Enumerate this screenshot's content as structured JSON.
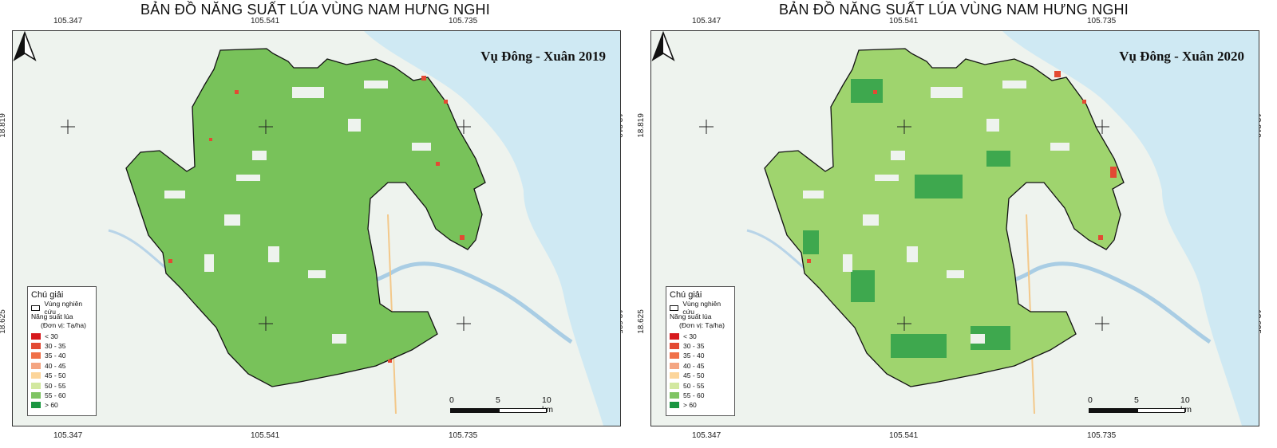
{
  "maps": [
    {
      "title": "BẢN ĐỒ NĂNG SUẤT LÚA VÙNG NAM HƯNG NGHI",
      "season_label": "Vụ Đông - Xuân 2019",
      "ticks": {
        "lon": [
          "105.347",
          "105.541",
          "105.735"
        ],
        "lat": [
          "18.819",
          "18.625"
        ]
      },
      "legend": {
        "title": "Chú giải",
        "boundary_label": "Vùng nghiên cứu",
        "layer_label": "Năng suất lúa",
        "unit_label": "(Đơn vị: Tạ/ha)",
        "classes": [
          {
            "label": "<   30",
            "color": "#d7191c"
          },
          {
            "label": "30 - 35",
            "color": "#e34a33"
          },
          {
            "label": "35 - 40",
            "color": "#f07048"
          },
          {
            "label": "40 - 45",
            "color": "#f4a582"
          },
          {
            "label": "45 - 50",
            "color": "#fcd59a"
          },
          {
            "label": "50 - 55",
            "color": "#d2e8a0"
          },
          {
            "label": "55 - 60",
            "color": "#7fc463"
          },
          {
            "label": "> 60",
            "color": "#1a9641"
          }
        ]
      },
      "scale": {
        "labels": [
          "0",
          "5",
          "10 km"
        ]
      },
      "dominant_color": "#78c25a"
    },
    {
      "title": "BẢN ĐỒ NĂNG SUẤT LÚA VÙNG NAM HƯNG NGHI",
      "season_label": "Vụ Đông - Xuân 2020",
      "ticks": {
        "lon": [
          "105.347",
          "105.541",
          "105.735"
        ],
        "lat": [
          "18.819",
          "18.625"
        ]
      },
      "legend": {
        "title": "Chú giải",
        "boundary_label": "Vùng nghiên cứu",
        "layer_label": "Năng suất lúa",
        "unit_label": "(Đơn vị: Tạ/ha)",
        "classes": [
          {
            "label": "<   30",
            "color": "#d7191c"
          },
          {
            "label": "30 - 35",
            "color": "#e34a33"
          },
          {
            "label": "35 - 40",
            "color": "#f07048"
          },
          {
            "label": "40 - 45",
            "color": "#f4a582"
          },
          {
            "label": "45 - 50",
            "color": "#fcd59a"
          },
          {
            "label": "50 - 55",
            "color": "#d2e8a0"
          },
          {
            "label": "55 - 60",
            "color": "#7fc463"
          },
          {
            "label": "> 60",
            "color": "#1a9641"
          }
        ]
      },
      "scale": {
        "labels": [
          "0",
          "5",
          "10 km"
        ]
      },
      "dominant_color": "#9fd46e"
    }
  ]
}
